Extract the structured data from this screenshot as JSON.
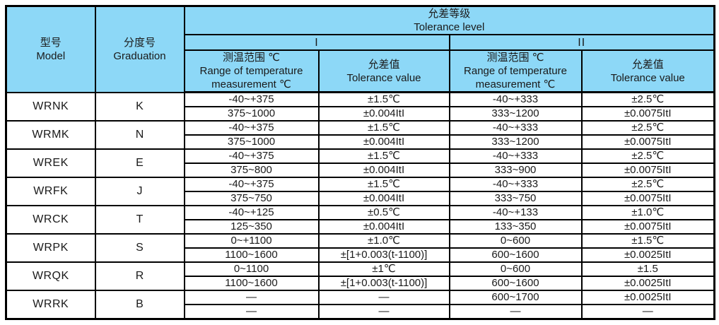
{
  "colors": {
    "header_bg": "#8dd8f7",
    "border": "#000000",
    "cell_bg": "#ffffff",
    "text": "#1a1a1a"
  },
  "header": {
    "model_zh": "型号",
    "model_en": "Model",
    "graduation_zh": "分度号",
    "graduation_en": "Graduation",
    "tolerance_zh": "允差等级",
    "tolerance_en": "Tolerance level",
    "level_i": "I",
    "level_ii": "II",
    "range_zh": "测温范围 ℃",
    "range_en": "Range of temperature measurement ℃",
    "value_zh": "允差值",
    "value_en": "Tolerance value"
  },
  "rows": [
    {
      "model": "WRNK",
      "graduation": "K",
      "sub": [
        {
          "i_range": "-40~+375",
          "i_value": "±1.5℃",
          "ii_range": "-40~+333",
          "ii_value": "±2.5℃"
        },
        {
          "i_range": "375~1000",
          "i_value": "±0.004ItI",
          "ii_range": "333~1200",
          "ii_value": "±0.0075ItI"
        }
      ]
    },
    {
      "model": "WRMK",
      "graduation": "N",
      "sub": [
        {
          "i_range": "-40~+375",
          "i_value": "±1.5℃",
          "ii_range": "-40~+333",
          "ii_value": "±2.5℃"
        },
        {
          "i_range": "375~1000",
          "i_value": "±0.004ItI",
          "ii_range": "333~1200",
          "ii_value": "±0.0075ItI"
        }
      ]
    },
    {
      "model": "WREK",
      "graduation": "E",
      "sub": [
        {
          "i_range": "-40~+375",
          "i_value": "±1.5℃",
          "ii_range": "-40~+333",
          "ii_value": "±2.5℃"
        },
        {
          "i_range": "375~800",
          "i_value": "±0.004ItI",
          "ii_range": "333~900",
          "ii_value": "±0.0075ItI"
        }
      ]
    },
    {
      "model": "WRFK",
      "graduation": "J",
      "sub": [
        {
          "i_range": "-40~+375",
          "i_value": "±1.5℃",
          "ii_range": "-40~+333",
          "ii_value": "±2.5℃"
        },
        {
          "i_range": "375~750",
          "i_value": "±0.004ItI",
          "ii_range": "333~750",
          "ii_value": "±0.0075ItI"
        }
      ]
    },
    {
      "model": "WRCK",
      "graduation": "T",
      "sub": [
        {
          "i_range": "-40~+125",
          "i_value": "±0.5℃",
          "ii_range": "-40~+133",
          "ii_value": "±1.0℃"
        },
        {
          "i_range": "125~350",
          "i_value": "±0.004ItI",
          "ii_range": "133~350",
          "ii_value": "±0.0075ItI"
        }
      ]
    },
    {
      "model": "WRPK",
      "graduation": "S",
      "sub": [
        {
          "i_range": "0~+1100",
          "i_value": "±1.0℃",
          "ii_range": "0~600",
          "ii_value": "±1.5℃"
        },
        {
          "i_range": "1100~1600",
          "i_value": "±[1+0.003(t-1100)]",
          "ii_range": "600~1600",
          "ii_value": "±0.0025ItI"
        }
      ]
    },
    {
      "model": "WRQK",
      "graduation": "R",
      "sub": [
        {
          "i_range": "0~1100",
          "i_value": "±1℃",
          "ii_range": "0~600",
          "ii_value": "±1.5"
        },
        {
          "i_range": "1100~1600",
          "i_value": "±[1+0.003(t-1100)]",
          "ii_range": "600~1600",
          "ii_value": "±0.0025ItI"
        }
      ]
    },
    {
      "model": "WRRK",
      "graduation": "B",
      "sub": [
        {
          "i_range": "—",
          "i_value": "—",
          "ii_range": "600~1700",
          "ii_value": "±0.0025ItI"
        },
        {
          "i_range": "—",
          "i_value": "—",
          "ii_range": "—",
          "ii_value": "—"
        }
      ]
    }
  ]
}
